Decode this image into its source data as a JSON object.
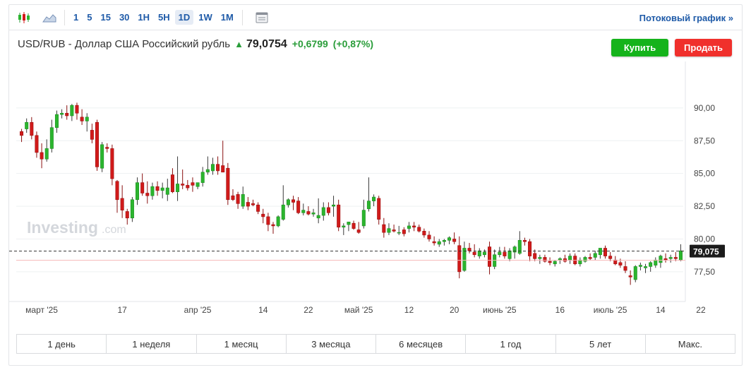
{
  "toolbar": {
    "intervals": [
      "1",
      "5",
      "15",
      "30",
      "1H",
      "5H",
      "1D",
      "1W",
      "1M"
    ],
    "active_interval": "1D",
    "stream_label": "Потоковый график »"
  },
  "header": {
    "title": "USD/RUB - Доллар США Российский рубль",
    "price": "79,0754",
    "change": "+0,6799",
    "change_pct": "(+0,87%)"
  },
  "buttons": {
    "buy": "Купить",
    "sell": "Продать"
  },
  "watermark": {
    "brand": "Investing",
    "suffix": ".com"
  },
  "colors": {
    "up": "#2bb52e",
    "down": "#d11a1a",
    "accent": "#1e5aa8",
    "buy": "#15b31b",
    "sell": "#f0302c"
  },
  "chart_data": {
    "type": "candlestick",
    "y_ticks": [
      "90,00",
      "87,50",
      "85,00",
      "82,50",
      "80,00",
      "77,50"
    ],
    "ylim": [
      75.5,
      91.5
    ],
    "current_price_label": "79,075",
    "x_tick_labels": [
      "март '25",
      "17",
      "апр '25",
      "14",
      "22",
      "май '25",
      "12",
      "20",
      "июнь '25",
      "16",
      "июль '25",
      "14",
      "22"
    ],
    "candles": [
      [
        88.2,
        88.4,
        87.4,
        87.9
      ],
      [
        88.4,
        89.2,
        88.1,
        88.9
      ],
      [
        88.9,
        89.3,
        87.6,
        87.9
      ],
      [
        87.9,
        88.2,
        86.2,
        86.6
      ],
      [
        86.6,
        87.3,
        85.4,
        86.1
      ],
      [
        86.1,
        87.6,
        85.9,
        86.9
      ],
      [
        86.9,
        89.1,
        86.6,
        88.5
      ],
      [
        88.5,
        89.8,
        88.1,
        89.5
      ],
      [
        89.5,
        89.9,
        89.2,
        89.6
      ],
      [
        89.6,
        90.2,
        89.1,
        89.4
      ],
      [
        89.4,
        90.3,
        89.0,
        90.2
      ],
      [
        90.2,
        90.4,
        89.1,
        89.6
      ],
      [
        89.3,
        89.9,
        88.7,
        89.0
      ],
      [
        89.0,
        89.6,
        88.2,
        89.3
      ],
      [
        88.3,
        88.8,
        87.3,
        87.6
      ],
      [
        88.9,
        89.1,
        85.2,
        85.5
      ],
      [
        85.4,
        87.4,
        85.1,
        87.2
      ],
      [
        87.0,
        87.3,
        86.6,
        86.9
      ],
      [
        86.9,
        87.2,
        84.1,
        84.6
      ],
      [
        84.4,
        84.5,
        82.0,
        83.0
      ],
      [
        83.1,
        84.1,
        81.6,
        82.2
      ],
      [
        82.1,
        82.3,
        81.1,
        81.6
      ],
      [
        81.6,
        83.2,
        81.3,
        83.0
      ],
      [
        83.0,
        84.7,
        82.6,
        84.3
      ],
      [
        84.3,
        85.0,
        83.3,
        83.5
      ],
      [
        83.5,
        84.4,
        82.7,
        83.3
      ],
      [
        83.3,
        84.3,
        83.0,
        84.0
      ],
      [
        84.0,
        84.4,
        83.3,
        83.7
      ],
      [
        83.7,
        84.3,
        83.1,
        83.9
      ],
      [
        83.4,
        84.6,
        82.9,
        83.9
      ],
      [
        84.9,
        85.4,
        83.5,
        83.6
      ],
      [
        83.6,
        86.3,
        82.9,
        84.2
      ],
      [
        84.2,
        85.3,
        83.8,
        84.1
      ],
      [
        84.1,
        84.5,
        83.7,
        83.9
      ],
      [
        84.3,
        84.7,
        83.6,
        84.1
      ],
      [
        84.0,
        84.3,
        83.8,
        84.3
      ],
      [
        84.3,
        85.5,
        84.0,
        85.1
      ],
      [
        85.1,
        86.3,
        84.9,
        85.3
      ],
      [
        85.2,
        86.2,
        84.9,
        85.7
      ],
      [
        85.7,
        86.3,
        84.9,
        85.2
      ],
      [
        85.6,
        87.5,
        85.1,
        85.1
      ],
      [
        85.4,
        85.8,
        82.6,
        83.0
      ],
      [
        83.3,
        83.8,
        82.9,
        83.0
      ],
      [
        83.4,
        83.6,
        82.3,
        82.7
      ],
      [
        82.5,
        84.0,
        82.3,
        83.4
      ],
      [
        82.8,
        83.2,
        82.2,
        82.5
      ],
      [
        82.7,
        83.0,
        82.5,
        82.6
      ],
      [
        82.6,
        82.8,
        81.9,
        82.1
      ],
      [
        81.9,
        82.3,
        81.2,
        81.7
      ],
      [
        81.7,
        82.0,
        80.6,
        81.1
      ],
      [
        81.1,
        81.3,
        80.4,
        81.0
      ],
      [
        81.0,
        81.8,
        80.9,
        81.7
      ],
      [
        81.5,
        84.1,
        81.4,
        82.6
      ],
      [
        82.6,
        83.1,
        82.4,
        83.0
      ],
      [
        83.0,
        83.3,
        82.2,
        82.8
      ],
      [
        82.9,
        83.2,
        81.9,
        82.0
      ],
      [
        82.0,
        82.7,
        81.8,
        82.2
      ],
      [
        82.1,
        82.5,
        81.8,
        81.9
      ],
      [
        81.9,
        82.3,
        81.7,
        82.0
      ],
      [
        81.6,
        83.1,
        81.2,
        81.8
      ],
      [
        81.8,
        82.8,
        81.4,
        82.4
      ],
      [
        82.4,
        82.8,
        81.8,
        82.0
      ],
      [
        82.5,
        83.3,
        81.7,
        82.6
      ],
      [
        82.6,
        83.0,
        80.6,
        80.9
      ],
      [
        80.9,
        81.2,
        80.3,
        81.0
      ],
      [
        81.1,
        81.3,
        80.6,
        81.3
      ],
      [
        81.2,
        81.4,
        80.7,
        80.8
      ],
      [
        80.7,
        81.3,
        80.4,
        80.5
      ],
      [
        81.0,
        83.0,
        80.8,
        82.2
      ],
      [
        82.3,
        84.7,
        82.1,
        82.9
      ],
      [
        82.9,
        83.4,
        82.5,
        83.2
      ],
      [
        83.1,
        83.3,
        81.1,
        81.5
      ],
      [
        81.1,
        81.6,
        80.1,
        80.5
      ],
      [
        80.5,
        81.2,
        80.3,
        80.8
      ],
      [
        80.7,
        81.1,
        80.5,
        80.6
      ],
      [
        80.5,
        81.0,
        80.3,
        80.5
      ],
      [
        80.7,
        80.9,
        80.2,
        80.4
      ],
      [
        80.8,
        81.3,
        80.5,
        81.0
      ],
      [
        81.0,
        81.3,
        80.6,
        80.9
      ],
      [
        80.9,
        81.1,
        80.5,
        80.6
      ],
      [
        80.6,
        80.8,
        80.1,
        80.3
      ],
      [
        80.3,
        80.6,
        79.8,
        80.0
      ],
      [
        79.8,
        80.2,
        79.5,
        79.7
      ],
      [
        79.6,
        80.0,
        79.4,
        79.8
      ],
      [
        79.8,
        80.0,
        79.5,
        79.9
      ],
      [
        79.9,
        80.2,
        79.6,
        80.1
      ],
      [
        80.0,
        80.5,
        79.6,
        79.8
      ],
      [
        79.5,
        80.2,
        77.0,
        77.5
      ],
      [
        77.6,
        79.8,
        77.5,
        79.3
      ],
      [
        79.3,
        79.7,
        78.9,
        79.1
      ],
      [
        79.0,
        79.6,
        78.6,
        78.8
      ],
      [
        78.7,
        79.3,
        78.5,
        79.1
      ],
      [
        78.8,
        79.2,
        78.6,
        79.0
      ],
      [
        79.4,
        79.8,
        77.3,
        77.9
      ],
      [
        77.9,
        79.2,
        77.7,
        78.8
      ],
      [
        78.8,
        79.4,
        78.6,
        79.0
      ],
      [
        79.0,
        79.4,
        78.5,
        78.7
      ],
      [
        78.5,
        79.3,
        78.3,
        79.1
      ],
      [
        79.0,
        79.5,
        78.5,
        79.4
      ],
      [
        78.9,
        80.6,
        78.8,
        79.9
      ],
      [
        79.9,
        80.1,
        79.5,
        79.8
      ],
      [
        79.8,
        80.0,
        78.3,
        78.7
      ],
      [
        78.9,
        79.2,
        78.3,
        78.5
      ],
      [
        78.5,
        78.8,
        78.1,
        78.6
      ],
      [
        78.6,
        78.8,
        78.2,
        78.3
      ],
      [
        78.3,
        78.6,
        78.0,
        78.2
      ],
      [
        78.1,
        78.4,
        77.9,
        78.3
      ],
      [
        78.4,
        78.6,
        78.1,
        78.5
      ],
      [
        78.5,
        78.8,
        78.2,
        78.3
      ],
      [
        78.4,
        78.9,
        78.1,
        78.7
      ],
      [
        78.7,
        78.9,
        78.0,
        78.1
      ],
      [
        78.1,
        78.6,
        77.9,
        78.4
      ],
      [
        78.3,
        78.7,
        78.2,
        78.6
      ],
      [
        78.6,
        78.9,
        78.4,
        78.5
      ],
      [
        78.6,
        79.1,
        78.4,
        78.9
      ],
      [
        78.8,
        79.3,
        78.5,
        79.3
      ],
      [
        79.3,
        79.5,
        78.5,
        78.7
      ],
      [
        78.7,
        79.0,
        78.3,
        78.5
      ],
      [
        78.4,
        78.7,
        78.0,
        78.1
      ],
      [
        78.2,
        78.5,
        77.8,
        78.0
      ],
      [
        77.9,
        78.3,
        77.4,
        77.6
      ],
      [
        77.2,
        77.6,
        76.5,
        77.1
      ],
      [
        76.9,
        78.0,
        76.7,
        77.9
      ],
      [
        77.9,
        78.2,
        77.6,
        78.0
      ],
      [
        77.8,
        78.1,
        77.4,
        77.9
      ],
      [
        77.9,
        78.3,
        77.5,
        78.2
      ],
      [
        78.0,
        78.6,
        77.8,
        78.4
      ],
      [
        78.2,
        78.8,
        77.8,
        78.7
      ],
      [
        78.5,
        78.9,
        78.2,
        78.4
      ],
      [
        78.5,
        78.8,
        78.2,
        78.6
      ],
      [
        78.6,
        79.0,
        78.3,
        78.5
      ],
      [
        78.4,
        79.6,
        78.3,
        79.1
      ]
    ]
  },
  "range_tabs": [
    "1 день",
    "1 неделя",
    "1 месяц",
    "3 месяца",
    "6 месяцев",
    "1 год",
    "5 лет",
    "Макс."
  ]
}
